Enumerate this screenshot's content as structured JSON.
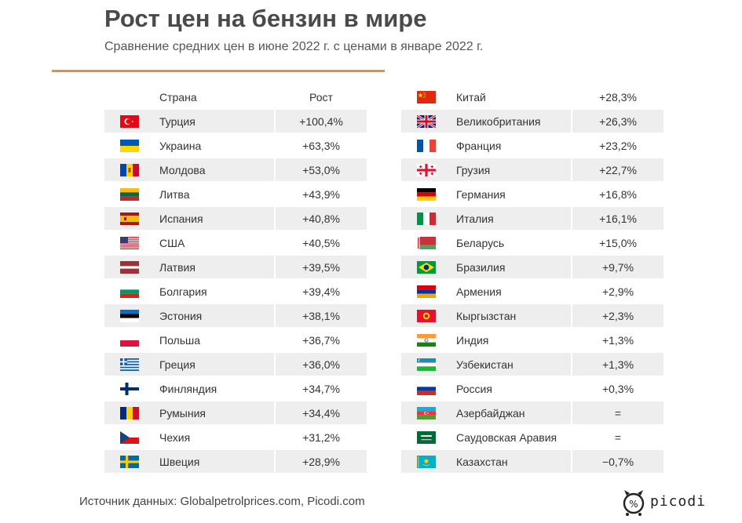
{
  "header": {
    "title": "Рост цен на бензин в мире",
    "subtitle": "Сравнение средних цен в июне 2022 г. с ценами в январе 2022 г."
  },
  "table_header": {
    "country": "Страна",
    "growth": "Рост"
  },
  "chart_data": {
    "type": "table",
    "columns": [
      "Страна",
      "Рост"
    ],
    "rows": [
      {
        "country": "Турция",
        "growth": "+100,4%",
        "flag": "turkey-flag-icon"
      },
      {
        "country": "Украина",
        "growth": "+63,3%",
        "flag": "ukraine-flag-icon"
      },
      {
        "country": "Молдова",
        "growth": "+53,0%",
        "flag": "moldova-flag-icon"
      },
      {
        "country": "Литва",
        "growth": "+43,9%",
        "flag": "lithuania-flag-icon"
      },
      {
        "country": "Испания",
        "growth": "+40,8%",
        "flag": "spain-flag-icon"
      },
      {
        "country": "США",
        "growth": "+40,5%",
        "flag": "usa-flag-icon"
      },
      {
        "country": "Латвия",
        "growth": "+39,5%",
        "flag": "latvia-flag-icon"
      },
      {
        "country": "Болгария",
        "growth": "+39,4%",
        "flag": "bulgaria-flag-icon"
      },
      {
        "country": "Эстония",
        "growth": "+38,1%",
        "flag": "estonia-flag-icon"
      },
      {
        "country": "Польша",
        "growth": "+36,7%",
        "flag": "poland-flag-icon"
      },
      {
        "country": "Греция",
        "growth": "+36,0%",
        "flag": "greece-flag-icon"
      },
      {
        "country": "Финляндия",
        "growth": "+34,7%",
        "flag": "finland-flag-icon"
      },
      {
        "country": "Румыния",
        "growth": "+34,4%",
        "flag": "romania-flag-icon"
      },
      {
        "country": "Чехия",
        "growth": "+31,2%",
        "flag": "czechia-flag-icon"
      },
      {
        "country": "Швеция",
        "growth": "+28,9%",
        "flag": "sweden-flag-icon"
      },
      {
        "country": "Китай",
        "growth": "+28,3%",
        "flag": "china-flag-icon"
      },
      {
        "country": "Великобритания",
        "growth": "+26,3%",
        "flag": "uk-flag-icon"
      },
      {
        "country": "Франция",
        "growth": "+23,2%",
        "flag": "france-flag-icon"
      },
      {
        "country": "Грузия",
        "growth": "+22,7%",
        "flag": "georgia-flag-icon"
      },
      {
        "country": "Германия",
        "growth": "+16,8%",
        "flag": "germany-flag-icon"
      },
      {
        "country": "Италия",
        "growth": "+16,1%",
        "flag": "italy-flag-icon"
      },
      {
        "country": "Беларусь",
        "growth": "+15,0%",
        "flag": "belarus-flag-icon"
      },
      {
        "country": "Бразилия",
        "growth": "+9,7%",
        "flag": "brazil-flag-icon"
      },
      {
        "country": "Армения",
        "growth": "+2,9%",
        "flag": "armenia-flag-icon"
      },
      {
        "country": "Кыргызстан",
        "growth": "+2,3%",
        "flag": "kyrgyzstan-flag-icon"
      },
      {
        "country": "Индия",
        "growth": "+1,3%",
        "flag": "india-flag-icon"
      },
      {
        "country": "Узбекистан",
        "growth": "+1,3%",
        "flag": "uzbekistan-flag-icon"
      },
      {
        "country": "Россия",
        "growth": "+0,3%",
        "flag": "russia-flag-icon"
      },
      {
        "country": "Азербайджан",
        "growth": "=",
        "flag": "azerbaijan-flag-icon"
      },
      {
        "country": "Саудовская Аравия",
        "growth": "=",
        "flag": "saudi-arabia-flag-icon"
      },
      {
        "country": "Казахстан",
        "growth": "−0,7%",
        "flag": "kazakhstan-flag-icon"
      }
    ]
  },
  "colors": {
    "accent": "#ef8b3f",
    "row_shade": "#eeeeee"
  },
  "footer": {
    "source": "Источник данных: Globalpetrolprices.com, Picodi.com",
    "brand": "picodi",
    "brand_icon": "picodi-logo-icon"
  }
}
